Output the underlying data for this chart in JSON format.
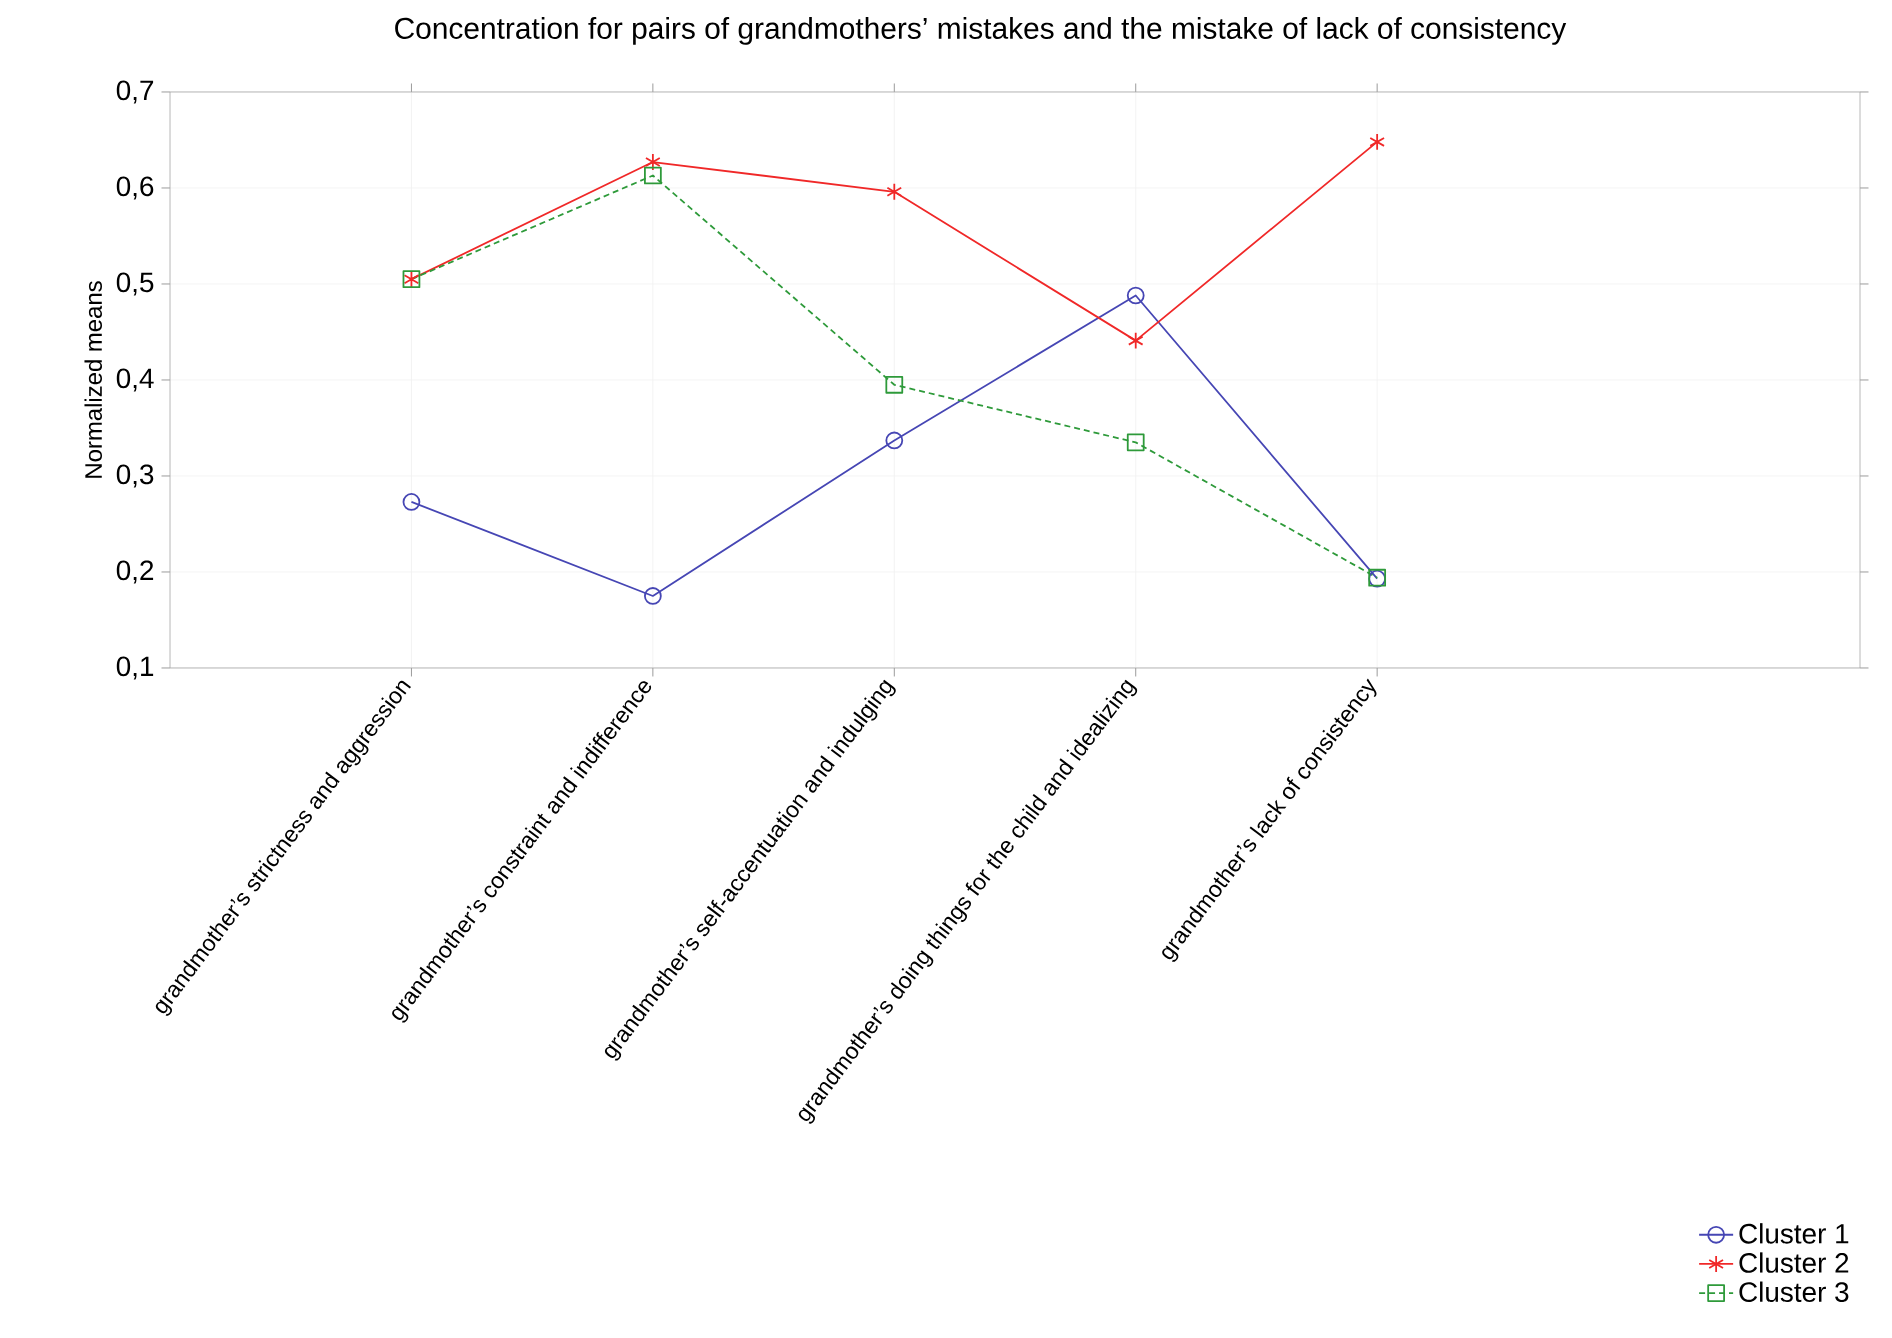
{
  "chart_data": {
    "type": "line",
    "title": "Concentration for pairs of grandmothers’ mistakes and the mistake of lack of consistency",
    "ylabel": "Normalized means",
    "categories": [
      "grandmother’s strictness and aggression",
      "grandmother’s constraint and indifference",
      "grandmother’s self-accentuation and indulging",
      "grandmother’s doing things for the child and idealizing",
      "grandmother’s lack of consistency"
    ],
    "series": [
      {
        "name": "Cluster 1",
        "color": "#4646b4",
        "marker": "circle",
        "line_style": "solid",
        "values": [
          0.273,
          0.175,
          0.337,
          0.488,
          0.193
        ]
      },
      {
        "name": "Cluster 2",
        "color": "#f02828",
        "marker": "cross",
        "line_style": "solid",
        "values": [
          0.505,
          0.627,
          0.596,
          0.441,
          0.648
        ]
      },
      {
        "name": "Cluster 3",
        "color": "#2e9a3a",
        "marker": "square",
        "line_style": "dashed",
        "values": [
          0.505,
          0.613,
          0.395,
          0.335,
          0.194
        ]
      }
    ],
    "ylim": [
      0.1,
      0.7
    ],
    "yticks": [
      {
        "value": 0.1,
        "label": "0,1"
      },
      {
        "value": 0.2,
        "label": "0,2"
      },
      {
        "value": 0.3,
        "label": "0,3"
      },
      {
        "value": 0.4,
        "label": "0,4"
      },
      {
        "value": 0.5,
        "label": "0,5"
      },
      {
        "value": 0.6,
        "label": "0,6"
      },
      {
        "value": 0.7,
        "label": "0,7"
      }
    ],
    "grid": true,
    "legend": "bottom right"
  }
}
